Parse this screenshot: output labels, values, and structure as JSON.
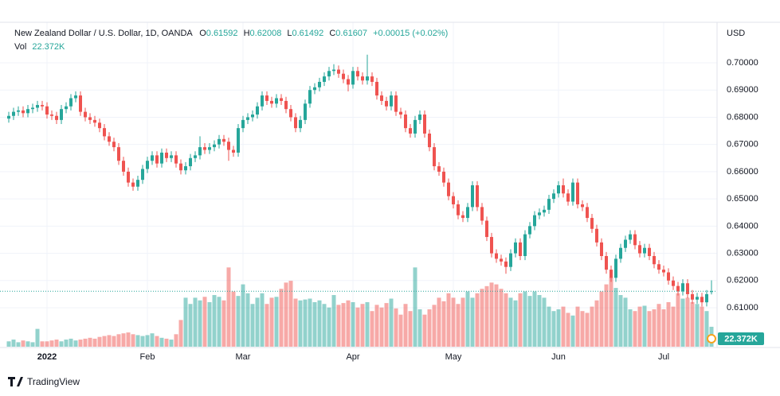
{
  "chart_data": {
    "type": "candlestick",
    "title": "New Zealand Dollar / U.S. Dollar, 1D, OANDA",
    "ohlc_labels": [
      "O",
      "H",
      "L",
      "C"
    ],
    "change_label": "+0.00015 (+0.02%)",
    "currency": "USD",
    "brand": "TradingView",
    "up_color": "#26a69a",
    "down_color": "#ef5350",
    "grid": true,
    "ylim": [
      0.5954,
      0.7149
    ],
    "yticks": [
      {
        "value": 0.61,
        "label": "0.61000"
      },
      {
        "value": 0.62,
        "label": "0.62000"
      },
      {
        "value": 0.63,
        "label": "0.63000"
      },
      {
        "value": 0.64,
        "label": "0.64000"
      },
      {
        "value": 0.65,
        "label": "0.65000"
      },
      {
        "value": 0.66,
        "label": "0.66000"
      },
      {
        "value": 0.67,
        "label": "0.67000"
      },
      {
        "value": 0.68,
        "label": "0.68000"
      },
      {
        "value": 0.69,
        "label": "0.69000"
      },
      {
        "value": 0.7,
        "label": "0.70000"
      }
    ],
    "categories": [
      null,
      null,
      null,
      null,
      null,
      null,
      null,
      null,
      "2022",
      null,
      null,
      null,
      null,
      null,
      null,
      null,
      null,
      null,
      null,
      null,
      null,
      null,
      null,
      null,
      null,
      null,
      null,
      null,
      null,
      "Feb",
      null,
      null,
      null,
      null,
      null,
      null,
      null,
      null,
      null,
      null,
      null,
      null,
      null,
      null,
      null,
      null,
      null,
      null,
      null,
      "Mar",
      null,
      null,
      null,
      null,
      null,
      null,
      null,
      null,
      null,
      null,
      null,
      null,
      null,
      null,
      null,
      null,
      null,
      null,
      null,
      null,
      null,
      null,
      "Apr",
      null,
      null,
      null,
      null,
      null,
      null,
      null,
      null,
      null,
      null,
      null,
      null,
      null,
      null,
      null,
      null,
      null,
      null,
      null,
      null,
      "May",
      null,
      null,
      null,
      null,
      null,
      null,
      null,
      null,
      null,
      null,
      null,
      null,
      null,
      null,
      null,
      null,
      null,
      null,
      null,
      null,
      null,
      "Jun",
      null,
      null,
      null,
      null,
      null,
      null,
      null,
      null,
      null,
      null,
      null,
      null,
      null,
      null,
      null,
      null,
      null,
      null,
      null,
      null,
      null,
      "Jul",
      null,
      null,
      null,
      null,
      null,
      null,
      null,
      null,
      null,
      null
    ],
    "ohlc": [
      [
        0.6795,
        0.682,
        0.678,
        0.6805
      ],
      [
        0.6805,
        0.6835,
        0.679,
        0.682
      ],
      [
        0.682,
        0.684,
        0.6805,
        0.6825
      ],
      [
        0.6825,
        0.684,
        0.68,
        0.6815
      ],
      [
        0.6815,
        0.6845,
        0.68,
        0.683
      ],
      [
        0.683,
        0.685,
        0.6815,
        0.6835
      ],
      [
        0.6835,
        0.686,
        0.682,
        0.6845
      ],
      [
        0.6845,
        0.686,
        0.6825,
        0.684
      ],
      [
        0.684,
        0.6855,
        0.6795,
        0.681
      ],
      [
        0.681,
        0.6825,
        0.679,
        0.6805
      ],
      [
        0.6805,
        0.682,
        0.6775,
        0.679
      ],
      [
        0.679,
        0.6845,
        0.6775,
        0.683
      ],
      [
        0.683,
        0.6855,
        0.6815,
        0.684
      ],
      [
        0.684,
        0.6885,
        0.6825,
        0.687
      ],
      [
        0.687,
        0.6895,
        0.6855,
        0.688
      ],
      [
        0.688,
        0.6895,
        0.6805,
        0.682
      ],
      [
        0.682,
        0.6835,
        0.6785,
        0.68
      ],
      [
        0.68,
        0.6815,
        0.6775,
        0.679
      ],
      [
        0.679,
        0.6805,
        0.6765,
        0.678
      ],
      [
        0.678,
        0.6795,
        0.6745,
        0.676
      ],
      [
        0.676,
        0.6775,
        0.6715,
        0.673
      ],
      [
        0.673,
        0.6745,
        0.6695,
        0.671
      ],
      [
        0.671,
        0.6725,
        0.6675,
        0.669
      ],
      [
        0.669,
        0.6705,
        0.6625,
        0.664
      ],
      [
        0.664,
        0.6655,
        0.6585,
        0.66
      ],
      [
        0.66,
        0.6615,
        0.6545,
        0.656
      ],
      [
        0.656,
        0.6575,
        0.653,
        0.6545
      ],
      [
        0.6545,
        0.6585,
        0.653,
        0.657
      ],
      [
        0.657,
        0.6625,
        0.6555,
        0.661
      ],
      [
        0.661,
        0.6655,
        0.6595,
        0.664
      ],
      [
        0.664,
        0.6675,
        0.6625,
        0.666
      ],
      [
        0.666,
        0.6675,
        0.6615,
        0.663
      ],
      [
        0.663,
        0.6685,
        0.6615,
        0.667
      ],
      [
        0.667,
        0.6685,
        0.6635,
        0.665
      ],
      [
        0.665,
        0.6675,
        0.6635,
        0.666
      ],
      [
        0.666,
        0.6675,
        0.6615,
        0.663
      ],
      [
        0.663,
        0.6645,
        0.659,
        0.6605
      ],
      [
        0.6605,
        0.6635,
        0.659,
        0.662
      ],
      [
        0.662,
        0.6665,
        0.6605,
        0.665
      ],
      [
        0.665,
        0.6675,
        0.6635,
        0.666
      ],
      [
        0.666,
        0.673,
        0.6645,
        0.669
      ],
      [
        0.669,
        0.6705,
        0.6665,
        0.668
      ],
      [
        0.668,
        0.6705,
        0.6665,
        0.669
      ],
      [
        0.669,
        0.6715,
        0.6675,
        0.67
      ],
      [
        0.67,
        0.6735,
        0.6685,
        0.672
      ],
      [
        0.672,
        0.6735,
        0.6695,
        0.671
      ],
      [
        0.671,
        0.6725,
        0.664,
        0.668
      ],
      [
        0.668,
        0.6695,
        0.6655,
        0.667
      ],
      [
        0.667,
        0.6775,
        0.6655,
        0.676
      ],
      [
        0.676,
        0.6805,
        0.6745,
        0.679
      ],
      [
        0.679,
        0.6815,
        0.6775,
        0.68
      ],
      [
        0.68,
        0.6825,
        0.6785,
        0.681
      ],
      [
        0.681,
        0.6855,
        0.6795,
        0.684
      ],
      [
        0.684,
        0.6895,
        0.6825,
        0.688
      ],
      [
        0.688,
        0.6895,
        0.6845,
        0.686
      ],
      [
        0.686,
        0.6875,
        0.6835,
        0.685
      ],
      [
        0.685,
        0.6885,
        0.6835,
        0.687
      ],
      [
        0.687,
        0.6885,
        0.6845,
        0.686
      ],
      [
        0.686,
        0.6875,
        0.6815,
        0.683
      ],
      [
        0.683,
        0.6845,
        0.6785,
        0.68
      ],
      [
        0.68,
        0.6815,
        0.6745,
        0.676
      ],
      [
        0.676,
        0.6805,
        0.6745,
        0.679
      ],
      [
        0.679,
        0.6865,
        0.6775,
        0.685
      ],
      [
        0.685,
        0.6915,
        0.6835,
        0.69
      ],
      [
        0.69,
        0.6925,
        0.6885,
        0.691
      ],
      [
        0.691,
        0.6945,
        0.6895,
        0.693
      ],
      [
        0.693,
        0.6965,
        0.6915,
        0.695
      ],
      [
        0.695,
        0.6985,
        0.6935,
        0.697
      ],
      [
        0.697,
        0.6995,
        0.6955,
        0.6975
      ],
      [
        0.6975,
        0.699,
        0.6945,
        0.696
      ],
      [
        0.696,
        0.6975,
        0.6925,
        0.694
      ],
      [
        0.694,
        0.6955,
        0.6895,
        0.692
      ],
      [
        0.692,
        0.6985,
        0.6905,
        0.697
      ],
      [
        0.697,
        0.6985,
        0.6935,
        0.695
      ],
      [
        0.695,
        0.6965,
        0.692,
        0.6935
      ],
      [
        0.6935,
        0.703,
        0.692,
        0.695
      ],
      [
        0.695,
        0.6965,
        0.6915,
        0.693
      ],
      [
        0.693,
        0.6945,
        0.6865,
        0.688
      ],
      [
        0.688,
        0.6895,
        0.6845,
        0.686
      ],
      [
        0.686,
        0.6875,
        0.6825,
        0.684
      ],
      [
        0.684,
        0.6895,
        0.6825,
        0.688
      ],
      [
        0.688,
        0.6895,
        0.6805,
        0.682
      ],
      [
        0.682,
        0.6835,
        0.6795,
        0.681
      ],
      [
        0.681,
        0.6825,
        0.6745,
        0.676
      ],
      [
        0.676,
        0.6775,
        0.6725,
        0.674
      ],
      [
        0.674,
        0.6805,
        0.6725,
        0.679
      ],
      [
        0.679,
        0.6825,
        0.6775,
        0.681
      ],
      [
        0.681,
        0.6825,
        0.6725,
        0.674
      ],
      [
        0.674,
        0.6755,
        0.6675,
        0.669
      ],
      [
        0.669,
        0.6705,
        0.6605,
        0.662
      ],
      [
        0.662,
        0.6635,
        0.6585,
        0.66
      ],
      [
        0.66,
        0.6615,
        0.6545,
        0.656
      ],
      [
        0.656,
        0.6575,
        0.6495,
        0.651
      ],
      [
        0.651,
        0.6525,
        0.6465,
        0.648
      ],
      [
        0.648,
        0.6495,
        0.6425,
        0.644
      ],
      [
        0.644,
        0.6455,
        0.6415,
        0.643
      ],
      [
        0.643,
        0.6485,
        0.6415,
        0.647
      ],
      [
        0.647,
        0.6565,
        0.6455,
        0.655
      ],
      [
        0.655,
        0.6565,
        0.6455,
        0.647
      ],
      [
        0.647,
        0.6485,
        0.6405,
        0.642
      ],
      [
        0.642,
        0.6435,
        0.6345,
        0.636
      ],
      [
        0.636,
        0.6375,
        0.6285,
        0.63
      ],
      [
        0.63,
        0.6315,
        0.6265,
        0.628
      ],
      [
        0.628,
        0.6295,
        0.6255,
        0.627
      ],
      [
        0.627,
        0.6285,
        0.6225,
        0.625
      ],
      [
        0.625,
        0.6315,
        0.6235,
        0.63
      ],
      [
        0.63,
        0.6355,
        0.6285,
        0.634
      ],
      [
        0.634,
        0.6355,
        0.6275,
        0.629
      ],
      [
        0.629,
        0.6385,
        0.6275,
        0.637
      ],
      [
        0.637,
        0.6415,
        0.6355,
        0.64
      ],
      [
        0.64,
        0.6455,
        0.6385,
        0.644
      ],
      [
        0.644,
        0.6465,
        0.6425,
        0.645
      ],
      [
        0.645,
        0.6475,
        0.6435,
        0.646
      ],
      [
        0.646,
        0.6515,
        0.6445,
        0.65
      ],
      [
        0.65,
        0.6535,
        0.6485,
        0.652
      ],
      [
        0.652,
        0.6565,
        0.6505,
        0.655
      ],
      [
        0.655,
        0.6575,
        0.6505,
        0.652
      ],
      [
        0.652,
        0.6535,
        0.6475,
        0.649
      ],
      [
        0.649,
        0.6575,
        0.6475,
        0.656
      ],
      [
        0.656,
        0.6575,
        0.6465,
        0.648
      ],
      [
        0.648,
        0.6495,
        0.6455,
        0.647
      ],
      [
        0.647,
        0.6485,
        0.6415,
        0.643
      ],
      [
        0.643,
        0.6445,
        0.6375,
        0.639
      ],
      [
        0.639,
        0.6405,
        0.6325,
        0.634
      ],
      [
        0.634,
        0.6355,
        0.6275,
        0.629
      ],
      [
        0.629,
        0.6305,
        0.6225,
        0.624
      ],
      [
        0.624,
        0.6255,
        0.6195,
        0.621
      ],
      [
        0.621,
        0.6295,
        0.6195,
        0.628
      ],
      [
        0.628,
        0.6335,
        0.6265,
        0.632
      ],
      [
        0.632,
        0.6365,
        0.6305,
        0.635
      ],
      [
        0.635,
        0.6385,
        0.6335,
        0.637
      ],
      [
        0.637,
        0.6385,
        0.6315,
        0.633
      ],
      [
        0.633,
        0.6345,
        0.6285,
        0.63
      ],
      [
        0.63,
        0.6335,
        0.6285,
        0.632
      ],
      [
        0.632,
        0.6335,
        0.6275,
        0.629
      ],
      [
        0.629,
        0.6305,
        0.6245,
        0.626
      ],
      [
        0.626,
        0.6275,
        0.6225,
        0.624
      ],
      [
        0.624,
        0.6255,
        0.6215,
        0.623
      ],
      [
        0.623,
        0.6245,
        0.6185,
        0.62
      ],
      [
        0.62,
        0.6215,
        0.6165,
        0.618
      ],
      [
        0.618,
        0.6195,
        0.6145,
        0.616
      ],
      [
        0.616,
        0.6205,
        0.6145,
        0.619
      ],
      [
        0.619,
        0.6205,
        0.6135,
        0.615
      ],
      [
        0.615,
        0.6165,
        0.6115,
        0.613
      ],
      [
        0.613,
        0.6155,
        0.6115,
        0.614
      ],
      [
        0.614,
        0.6155,
        0.6105,
        0.612
      ],
      [
        0.612,
        0.6165,
        0.6105,
        0.615
      ],
      [
        0.61592,
        0.62008,
        0.61492,
        0.61607
      ]
    ],
    "volume": {
      "name": "Vol",
      "last_value_label": "22.372K",
      "ylim": [
        0,
        100000
      ],
      "values": [
        6000,
        8000,
        5000,
        7000,
        6000,
        5000,
        20000,
        6000,
        6000,
        7000,
        8000,
        6000,
        8000,
        9000,
        7000,
        8000,
        9000,
        10000,
        9000,
        11000,
        12000,
        13000,
        12000,
        14000,
        15000,
        16000,
        14000,
        13000,
        12000,
        13000,
        15000,
        12000,
        10000,
        9000,
        8000,
        14000,
        30000,
        55000,
        48000,
        55000,
        52000,
        56000,
        50000,
        58000,
        56000,
        52000,
        89000,
        62000,
        57000,
        70000,
        60000,
        48000,
        55000,
        60000,
        48000,
        55000,
        56000,
        65000,
        72000,
        74000,
        54000,
        52000,
        53000,
        54000,
        50000,
        52000,
        48000,
        44000,
        58000,
        47000,
        49000,
        52000,
        50000,
        44000,
        48000,
        50000,
        40000,
        47000,
        44000,
        49000,
        54000,
        43000,
        36000,
        48000,
        40000,
        89000,
        42000,
        36000,
        42000,
        47000,
        55000,
        51000,
        60000,
        55000,
        48000,
        55000,
        62000,
        55000,
        60000,
        65000,
        68000,
        72000,
        70000,
        65000,
        60000,
        55000,
        52000,
        60000,
        62000,
        57000,
        62000,
        58000,
        55000,
        45000,
        40000,
        42000,
        45000,
        38000,
        35000,
        45000,
        40000,
        38000,
        45000,
        52000,
        62000,
        70000,
        78000,
        66000,
        58000,
        55000,
        42000,
        40000,
        45000,
        46000,
        40000,
        42000,
        48000,
        42000,
        50000,
        45000,
        60000,
        54000,
        55000,
        50000,
        48000,
        45000,
        40000,
        22372
      ]
    }
  }
}
